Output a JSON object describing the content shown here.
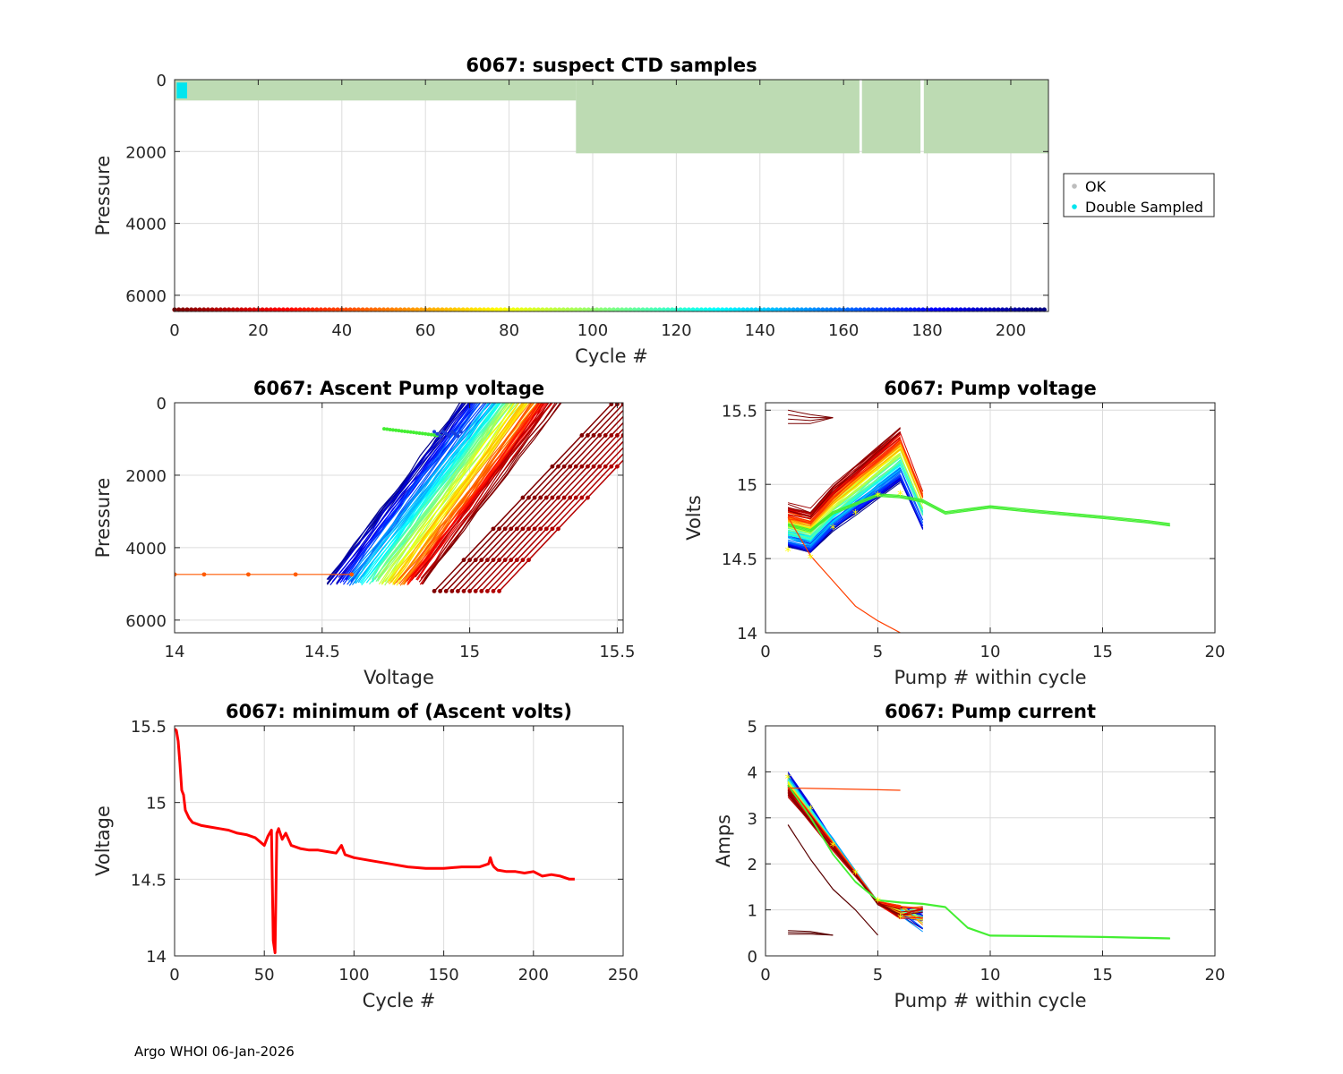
{
  "footer": "Argo WHOI 06-Jan-2026",
  "chart_data": [
    {
      "id": "ctd",
      "type": "scatter",
      "title": "6067: suspect CTD samples",
      "xlabel": "Cycle #",
      "ylabel": "Pressure",
      "xlim": [
        0,
        209
      ],
      "ylim": [
        6450,
        0
      ],
      "xticks": [
        0,
        20,
        40,
        60,
        80,
        100,
        120,
        140,
        160,
        180,
        200
      ],
      "yticks": [
        0,
        2000,
        4000,
        6000
      ],
      "legend": {
        "placement": "right",
        "entries": [
          {
            "label": "OK",
            "color": "#bdbdbd"
          },
          {
            "label": "Double Sampled",
            "color": "#00e5ee"
          }
        ]
      },
      "ok_regions": [
        {
          "cycles": [
            0,
            96
          ],
          "pmin": 0,
          "pmax": 580
        },
        {
          "cycles": [
            96,
            163.8
          ],
          "pmin": 0,
          "pmax": 2050
        },
        {
          "cycles": [
            164.4,
            178.4
          ],
          "pmin": 0,
          "pmax": 2050
        },
        {
          "cycles": [
            179.2,
            209
          ],
          "pmin": 0,
          "pmax": 2050
        }
      ],
      "double_sampled": {
        "cycles": [
          0.5,
          3
        ],
        "pmin": 80,
        "pmax": 520
      },
      "cycle_dot_pressure": 6400
    },
    {
      "id": "ascent",
      "type": "line",
      "title": "6067: Ascent Pump voltage",
      "xlabel": "Voltage",
      "ylabel": "Pressure",
      "xlim": [
        14,
        15.52
      ],
      "ylim": [
        6350,
        0
      ],
      "xticks": [
        14,
        14.5,
        15,
        15.5
      ],
      "yticks": [
        0,
        2000,
        4000,
        6000
      ],
      "deep_voltage_early": 14.85,
      "deep_voltage_late": 14.52,
      "surface_voltage_early": 15.3,
      "surface_voltage_late": 14.98,
      "max_pressure": 5050,
      "outlier_series": {
        "voltages": [
          14.0,
          14.1,
          14.25,
          14.41,
          14.6
        ],
        "pressure": 4740
      }
    },
    {
      "id": "pumpv",
      "type": "line",
      "title": "6067: Pump voltage",
      "xlabel": "Pump # within cycle",
      "ylabel": "Volts",
      "xlim": [
        0,
        20
      ],
      "ylim": [
        14,
        15.55
      ],
      "xticks": [
        0,
        5,
        10,
        15,
        20
      ],
      "yticks": [
        14,
        14.5,
        15,
        15.5
      ],
      "mean_pumps": [
        1,
        2,
        3,
        4,
        5,
        6
      ],
      "mean_volts": [
        14.55,
        14.5,
        14.7,
        14.8,
        14.92,
        14.93
      ],
      "long_series": {
        "pumps": [
          1,
          2,
          3,
          4,
          5,
          6,
          7,
          8,
          10,
          12,
          15,
          17,
          18
        ],
        "volts": [
          14.72,
          14.68,
          14.8,
          14.86,
          14.92,
          14.91,
          14.88,
          14.8,
          14.84,
          14.81,
          14.77,
          14.74,
          14.72
        ]
      },
      "outlier_series": {
        "pumps": [
          1,
          2,
          3,
          4,
          5,
          6
        ],
        "volts": [
          14.78,
          14.52,
          14.35,
          14.18,
          14.08,
          14.0
        ]
      }
    },
    {
      "id": "minv",
      "type": "line",
      "title": "6067: minimum of (Ascent volts)",
      "xlabel": "Cycle #",
      "ylabel": "Voltage",
      "xlim": [
        0,
        250
      ],
      "ylim": [
        14,
        15.5
      ],
      "xticks": [
        0,
        50,
        100,
        150,
        200,
        250
      ],
      "yticks": [
        14,
        14.5,
        15,
        15.5
      ],
      "series": {
        "x": [
          0,
          1,
          2,
          3,
          4,
          5,
          6,
          8,
          10,
          15,
          20,
          25,
          30,
          35,
          40,
          45,
          48,
          50,
          52,
          53,
          54,
          55,
          56,
          57,
          58,
          60,
          62,
          65,
          70,
          75,
          80,
          85,
          90,
          93,
          95,
          100,
          110,
          120,
          130,
          140,
          150,
          160,
          170,
          175,
          176,
          177,
          178,
          180,
          185,
          190,
          195,
          200,
          205,
          210,
          215,
          220,
          223
        ],
        "y": [
          15.48,
          15.47,
          15.4,
          15.25,
          15.08,
          15.05,
          14.95,
          14.9,
          14.87,
          14.85,
          14.84,
          14.83,
          14.82,
          14.8,
          14.79,
          14.77,
          14.74,
          14.72,
          14.78,
          14.8,
          14.82,
          14.1,
          14.02,
          14.8,
          14.83,
          14.76,
          14.8,
          14.72,
          14.7,
          14.69,
          14.69,
          14.68,
          14.67,
          14.72,
          14.66,
          14.64,
          14.62,
          14.6,
          14.58,
          14.57,
          14.57,
          14.58,
          14.58,
          14.6,
          14.64,
          14.6,
          14.58,
          14.56,
          14.55,
          14.55,
          14.54,
          14.55,
          14.52,
          14.53,
          14.52,
          14.5,
          14.5
        ]
      }
    },
    {
      "id": "pumpc",
      "type": "line",
      "title": "6067: Pump current",
      "xlabel": "Pump # within cycle",
      "ylabel": "Amps",
      "xlim": [
        0,
        20
      ],
      "ylim": [
        0,
        5
      ],
      "xticks": [
        0,
        5,
        10,
        15,
        20
      ],
      "yticks": [
        0,
        1,
        2,
        3,
        4,
        5
      ],
      "mean_pumps": [
        1,
        2,
        3,
        4,
        5,
        6
      ],
      "mean_amps": [
        3.85,
        3.18,
        2.38,
        1.78,
        1.18,
        0.82
      ],
      "long_series": {
        "pumps": [
          1,
          2,
          3,
          4,
          5,
          6,
          7,
          8,
          9,
          10,
          12,
          15,
          17,
          18
        ],
        "amps": [
          3.7,
          3.0,
          2.2,
          1.6,
          1.2,
          1.15,
          1.12,
          1.05,
          0.6,
          0.43,
          0.42,
          0.4,
          0.38,
          0.37
        ]
      },
      "flat_series": {
        "pumps": [
          1,
          2,
          3,
          4,
          5,
          6
        ],
        "amps": [
          3.65,
          3.64,
          3.63,
          3.62,
          3.61,
          3.6
        ]
      }
    }
  ]
}
